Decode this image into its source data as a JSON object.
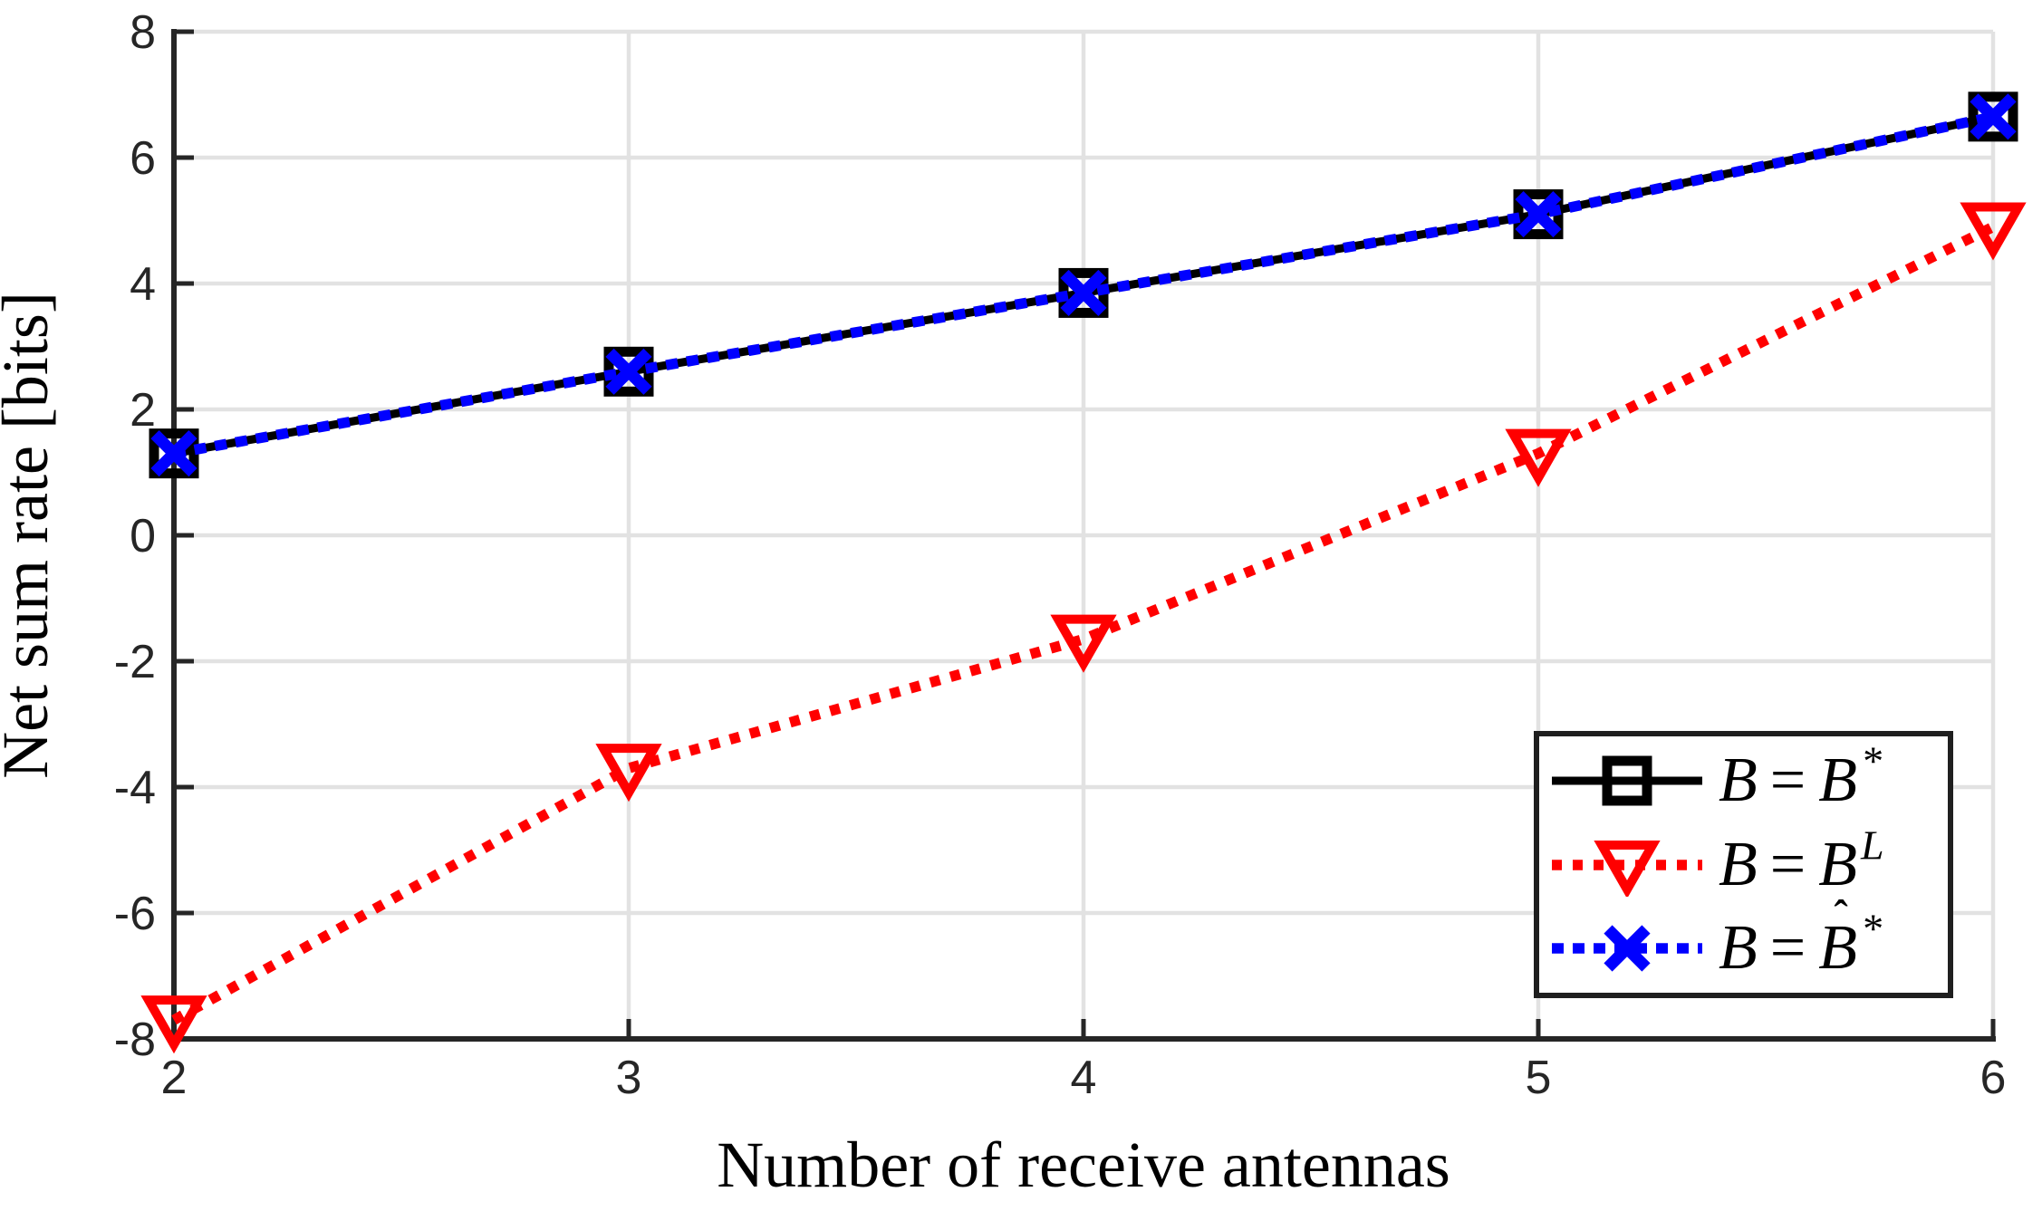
{
  "chart_data": {
    "type": "line",
    "title": "",
    "xlabel": "Number of receive antennas",
    "ylabel": "Net sum rate [bits]",
    "x": [
      2,
      3,
      4,
      5,
      6
    ],
    "series": [
      {
        "name": "B = B*",
        "values": [
          1.3,
          2.6,
          3.85,
          5.1,
          6.65
        ],
        "color": "#000000",
        "linestyle": "solid",
        "linewidth": 9,
        "marker": "square",
        "dash": ""
      },
      {
        "name": "B = B^L",
        "values": [
          -7.7,
          -3.7,
          -1.65,
          1.3,
          4.9
        ],
        "color": "#ff0000",
        "linestyle": "dotted",
        "linewidth": 11.5,
        "marker": "triangle-down",
        "dash": "11 12"
      },
      {
        "name": "B = B-hat*",
        "values": [
          1.3,
          2.6,
          3.85,
          5.1,
          6.65
        ],
        "color": "#0000ff",
        "linestyle": "dotted",
        "linewidth": 11.5,
        "marker": "x",
        "dash": "13 10"
      }
    ],
    "xlim": [
      2,
      6
    ],
    "ylim": [
      -8,
      8
    ],
    "xticks": [
      2,
      3,
      4,
      5,
      6
    ],
    "xtick_labels": [
      "2",
      "3",
      "4",
      "5",
      "6"
    ],
    "yticks": [
      -8,
      -6,
      -4,
      -2,
      0,
      2,
      4,
      6,
      8
    ],
    "ytick_labels": [
      "-8",
      "-6",
      "-4",
      "-2",
      "0",
      "2",
      "4",
      "6",
      "8"
    ],
    "grid": true,
    "legend_position": "lower right inside"
  },
  "legend": {
    "hat_char": "ˆ",
    "entries": [
      {
        "lhs": "B",
        "eq": "=",
        "rhs": "B",
        "sup": "*",
        "hat": false
      },
      {
        "lhs": "B",
        "eq": "=",
        "rhs": "B",
        "sup": "L",
        "hat": false
      },
      {
        "lhs": "B",
        "eq": "=",
        "rhs": "B",
        "sup": "*",
        "hat": true
      }
    ]
  },
  "colors": {
    "background": "#ffffff",
    "axis": "#262626",
    "grid": "#e2e2e2",
    "tick_text": "#262626",
    "label_text": "#000000",
    "series_black": "#000000",
    "series_red": "#ff0000",
    "series_blue": "#0000ff"
  }
}
